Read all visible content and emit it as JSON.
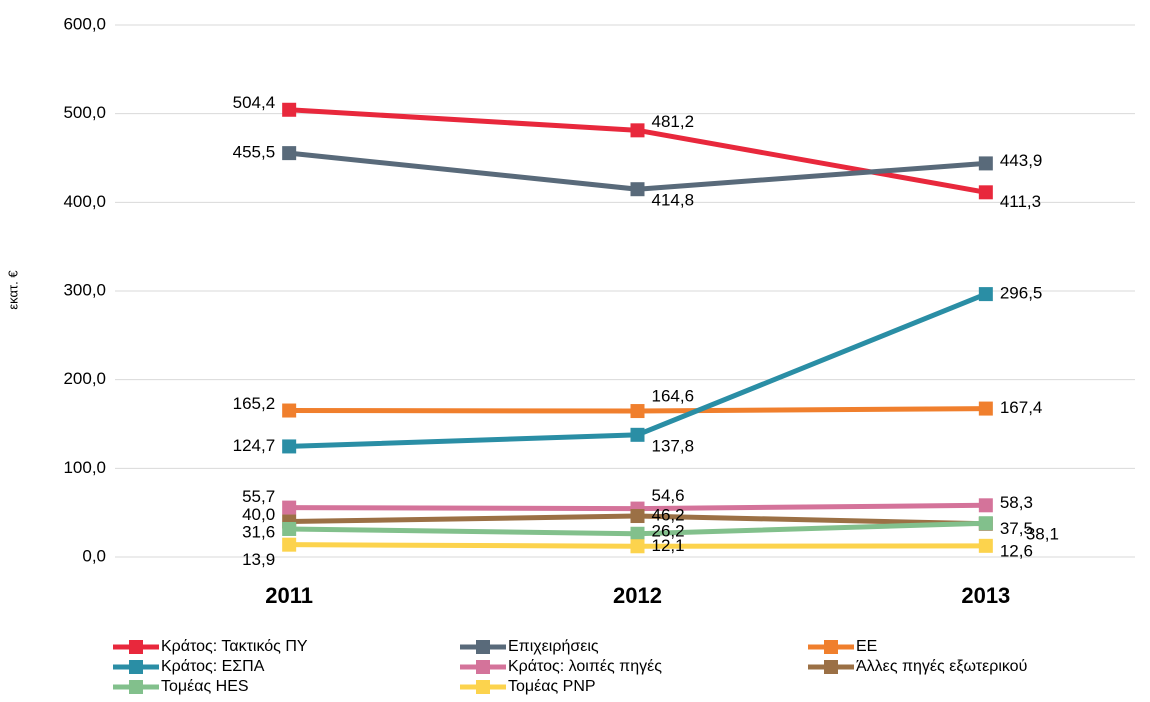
{
  "chart_data": {
    "type": "line",
    "y_label": "εκατ. €",
    "categories": [
      "2011",
      "2012",
      "2013"
    ],
    "series": [
      {
        "name": "Κράτος: Τακτικός ΠΥ",
        "color": "#e8283c",
        "values": [
          504.4,
          481.2,
          411.3
        ],
        "value_labels": [
          "504,4",
          "481,2",
          "411,3"
        ]
      },
      {
        "name": "Επιχειρήσεις",
        "color": "#596a7a",
        "values": [
          455.5,
          414.8,
          443.9
        ],
        "value_labels": [
          "455,5",
          "414,8",
          "443,9"
        ]
      },
      {
        "name": "ΕΕ",
        "color": "#f07f2d",
        "values": [
          165.2,
          164.6,
          167.4
        ],
        "value_labels": [
          "165,2",
          "164,6",
          "167,4"
        ]
      },
      {
        "name": "Κράτος: ΕΣΠΑ",
        "color": "#2a8ea5",
        "values": [
          124.7,
          137.8,
          296.5
        ],
        "value_labels": [
          "124,7",
          "137,8",
          "296,5"
        ]
      },
      {
        "name": "Κράτος: λοιπές πηγές",
        "color": "#d4739a",
        "values": [
          55.7,
          54.6,
          58.3
        ],
        "value_labels": [
          "55,7",
          "54,6",
          "58,3"
        ]
      },
      {
        "name": "Άλλες πηγές εξωτερικού",
        "color": "#9b7045",
        "values": [
          40.0,
          46.2,
          37.5
        ],
        "value_labels": [
          "40,0",
          "46,2",
          "37,5"
        ]
      },
      {
        "name": "Τομέας HES",
        "color": "#82c08c",
        "values": [
          31.6,
          26.2,
          38.1
        ],
        "value_labels": [
          "31,6",
          "26,2",
          "38,1"
        ]
      },
      {
        "name": "Τομέας PNP",
        "color": "#fcd34d",
        "values": [
          13.9,
          12.1,
          12.6
        ],
        "value_labels": [
          "13,9",
          "12,1",
          "12,6"
        ]
      }
    ],
    "ylim": [
      0,
      600
    ],
    "yticks": [
      {
        "value": 0,
        "label": "0,0"
      },
      {
        "value": 100,
        "label": "100,0"
      },
      {
        "value": 200,
        "label": "200,0"
      },
      {
        "value": 300,
        "label": "300,0"
      },
      {
        "value": 400,
        "label": "400,0"
      },
      {
        "value": 500,
        "label": "500,0"
      },
      {
        "value": 600,
        "label": "600,0"
      }
    ],
    "grid": true
  }
}
